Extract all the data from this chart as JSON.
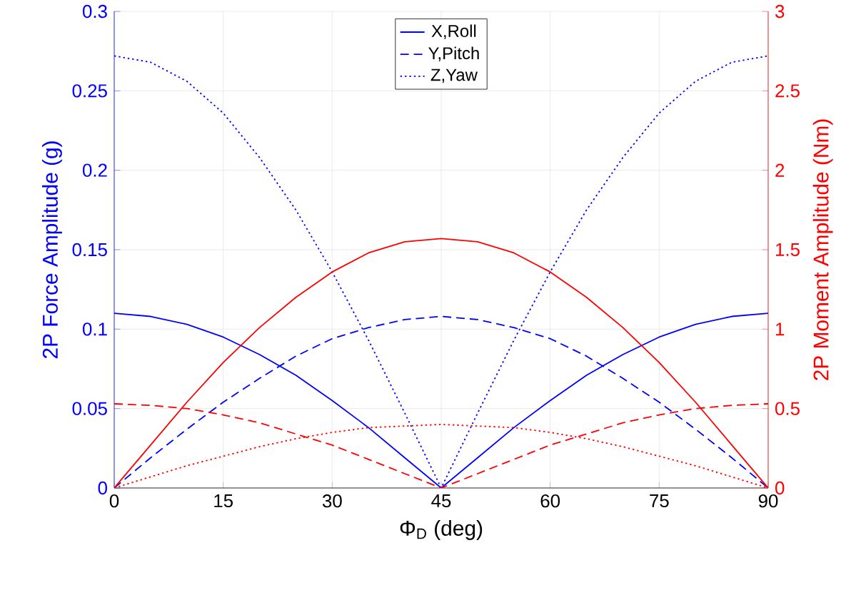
{
  "chart_data": {
    "type": "line",
    "xlabel": "Φ$_{D}$ (deg)",
    "ylabel": "2P Force Amplitude (g)",
    "y2label": "2P Moment Amplitude (Nm)",
    "x": [
      0,
      5,
      10,
      15,
      20,
      25,
      30,
      35,
      40,
      45,
      50,
      55,
      60,
      65,
      70,
      75,
      80,
      85,
      90
    ],
    "xlim": [
      0,
      90
    ],
    "xticks": [
      0,
      15,
      30,
      45,
      60,
      75,
      90
    ],
    "ylim": [
      0,
      0.3
    ],
    "yticks": [
      0,
      0.05,
      0.1,
      0.15,
      0.2,
      0.25,
      0.3
    ],
    "y2lim": [
      0,
      3
    ],
    "y2ticks": [
      0,
      0.5,
      1,
      1.5,
      2,
      2.5,
      3
    ],
    "grid": true,
    "legend": "top",
    "marker": "none",
    "series": [
      {
        "name": "X,Roll",
        "color": "#0000ff",
        "line_style": "solid",
        "values": [
          0.11,
          0.108,
          0.103,
          0.095,
          0.084,
          0.071,
          0.055,
          0.038,
          0.019,
          0,
          0.019,
          0.038,
          0.055,
          0.071,
          0.084,
          0.095,
          0.103,
          0.108,
          0.11
        ]
      },
      {
        "name": "Y,Pitch",
        "color": "#0000ff",
        "line_style": "dashed",
        "values": [
          0,
          0.019,
          0.037,
          0.054,
          0.069,
          0.083,
          0.094,
          0.101,
          0.106,
          0.108,
          0.106,
          0.101,
          0.094,
          0.083,
          0.069,
          0.054,
          0.037,
          0.019,
          0
        ]
      },
      {
        "name": "Z,Yaw",
        "color": "#0000ff",
        "line_style": "dotted",
        "values": [
          0.272,
          0.268,
          0.256,
          0.236,
          0.208,
          0.175,
          0.136,
          0.093,
          0.047,
          0,
          0.047,
          0.093,
          0.136,
          0.175,
          0.208,
          0.236,
          0.256,
          0.268,
          0.272
        ]
      },
      {
        "color": "#ff0000",
        "line_style": "solid",
        "axis": "y2",
        "values": [
          0,
          0.27,
          0.54,
          0.79,
          1.01,
          1.2,
          1.36,
          1.48,
          1.55,
          1.57,
          1.55,
          1.48,
          1.36,
          1.2,
          1.01,
          0.79,
          0.54,
          0.27,
          0
        ]
      },
      {
        "color": "#ff0000",
        "line_style": "dashed",
        "axis": "y2",
        "values": [
          0.53,
          0.52,
          0.5,
          0.46,
          0.41,
          0.34,
          0.27,
          0.18,
          0.09,
          0,
          0.09,
          0.18,
          0.27,
          0.34,
          0.41,
          0.46,
          0.5,
          0.52,
          0.53
        ]
      },
      {
        "color": "#ff0000",
        "line_style": "dotted",
        "axis": "y2",
        "values": [
          0,
          0.07,
          0.14,
          0.2,
          0.26,
          0.31,
          0.35,
          0.38,
          0.39,
          0.4,
          0.39,
          0.38,
          0.35,
          0.31,
          0.26,
          0.2,
          0.14,
          0.07,
          0
        ]
      }
    ]
  }
}
